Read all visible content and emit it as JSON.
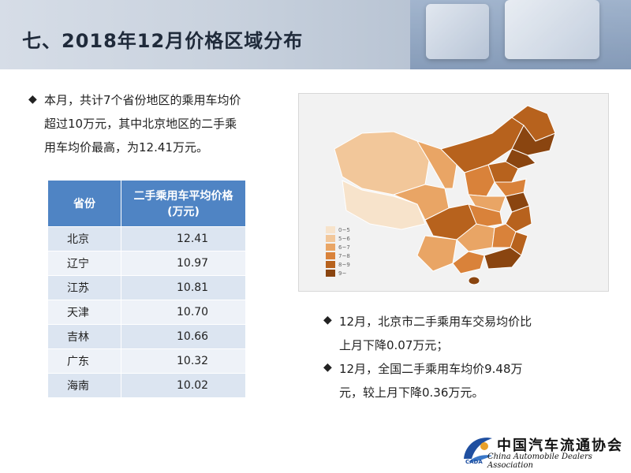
{
  "header": {
    "title": "七、2018年12月价格区域分布"
  },
  "intro": {
    "line1": "本月，共计7个省份地区的乘用车均价",
    "line2": "超过10万元，其中北京地区的二手乘",
    "line3": "用车均价最高，为12.41万元。"
  },
  "table": {
    "headers": {
      "province": "省份",
      "price_line1": "二手乘用车平均价格",
      "price_line2": "(万元)"
    },
    "rows": [
      {
        "province": "北京",
        "value": "12.41"
      },
      {
        "province": "辽宁",
        "value": "10.97"
      },
      {
        "province": "江苏",
        "value": "10.81"
      },
      {
        "province": "天津",
        "value": "10.70"
      },
      {
        "province": "吉林",
        "value": "10.66"
      },
      {
        "province": "广东",
        "value": "10.32"
      },
      {
        "province": "海南",
        "value": "10.02"
      }
    ]
  },
  "map": {
    "legend": [
      "0~5",
      "5~6",
      "6~7",
      "7~8",
      "8~9",
      "9~"
    ],
    "legend_colors": [
      "#f7e3cb",
      "#f2c79a",
      "#e9a565",
      "#d9823a",
      "#b7621d",
      "#8a4510"
    ]
  },
  "notes": {
    "note1_line1": "12月，北京市二手乘用车交易均价比",
    "note1_line2": "上月下降0.07万元；",
    "note2_line1": "12月，全国二手乘用车均价9.48万",
    "note2_line2": "元，较上月下降0.36万元。"
  },
  "logo": {
    "cn": "中国汽车流通协会",
    "en": "China Automobile Dealers Association",
    "abbr": "CADA"
  }
}
